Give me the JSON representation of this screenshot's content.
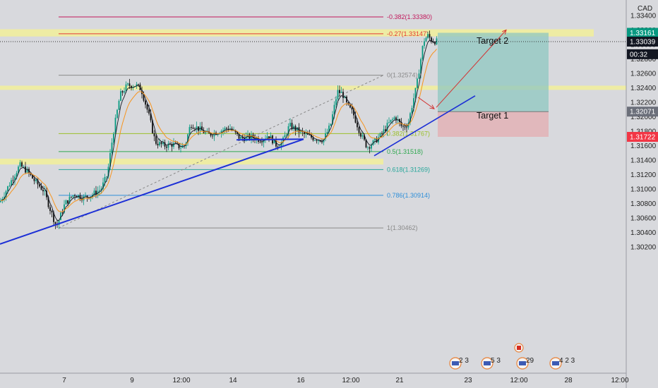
{
  "chart_data": {
    "type": "candlestick",
    "currency_label": "CAD",
    "y_ticks": [
      "1.33400",
      "1.33200",
      "1.33000",
      "1.32800",
      "1.32600",
      "1.32400",
      "1.32200",
      "1.32000",
      "1.31800",
      "1.31600",
      "1.31400",
      "1.31200",
      "1.31000",
      "1.30800",
      "1.30600",
      "1.30400",
      "1.30200"
    ],
    "ylim": [
      1.3018,
      1.3345
    ],
    "x_ticks": [
      "7",
      "9",
      "12:00",
      "14",
      "16",
      "12:00",
      "21",
      "23",
      "12:00",
      "28",
      "12:00"
    ],
    "fib_levels": [
      {
        "label": "-0.382(1.33380)",
        "value": 1.3338,
        "color": "#c2185b"
      },
      {
        "label": "-0.27(1.33147)",
        "value": 1.33147,
        "color": "#e53935"
      },
      {
        "label": "0(1.32574)",
        "value": 1.32574,
        "color": "#8a8a8a"
      },
      {
        "label": "0.382(1.31767)",
        "value": 1.31767,
        "color": "#9bbf2a"
      },
      {
        "label": "0.5(1.31518)",
        "value": 1.31518,
        "color": "#2fa84f"
      },
      {
        "label": "0.618(1.31269)",
        "value": 1.31269,
        "color": "#26a69a"
      },
      {
        "label": "0.786(1.30914)",
        "value": 1.30914,
        "color": "#2f8fd8"
      },
      {
        "label": "1(1.30462)",
        "value": 1.30462,
        "color": "#8a8a8a"
      }
    ],
    "zones": [
      {
        "name": "resistance-zone-top",
        "from": 1.3311,
        "to": 1.3321
      },
      {
        "name": "resistance-zone-mid",
        "from": 1.3238,
        "to": 1.3243
      },
      {
        "name": "support-zone-low",
        "from": 1.3134,
        "to": 1.3142
      }
    ],
    "trade": {
      "entry": 1.32071,
      "target": 1.33161,
      "stop": 1.31722
    },
    "price_labels": [
      {
        "text": "1.33161",
        "value": 1.33161,
        "color": "#089981"
      },
      {
        "text": "1.33039",
        "value": 1.33039,
        "color": "#131722"
      },
      {
        "text": "00:32",
        "value": 1.32865,
        "color": "#131722"
      },
      {
        "text": "1.32071",
        "value": 1.32071,
        "color": "#6b6f7a"
      },
      {
        "text": "1.31722",
        "value": 1.31722,
        "color": "#f23645"
      }
    ],
    "current_price": 1.33039,
    "annotations": [
      "Target 2",
      "Target 1"
    ],
    "event_badges": [
      "2",
      "3",
      "5",
      "3",
      "29",
      "4",
      "2",
      "3"
    ],
    "colors": {
      "up": "#089981",
      "down": "#111111",
      "ema_fast": "#131722",
      "ema_slow": "#f7941d",
      "trend": "#1c2fd6",
      "arrow": "#d23434"
    }
  }
}
